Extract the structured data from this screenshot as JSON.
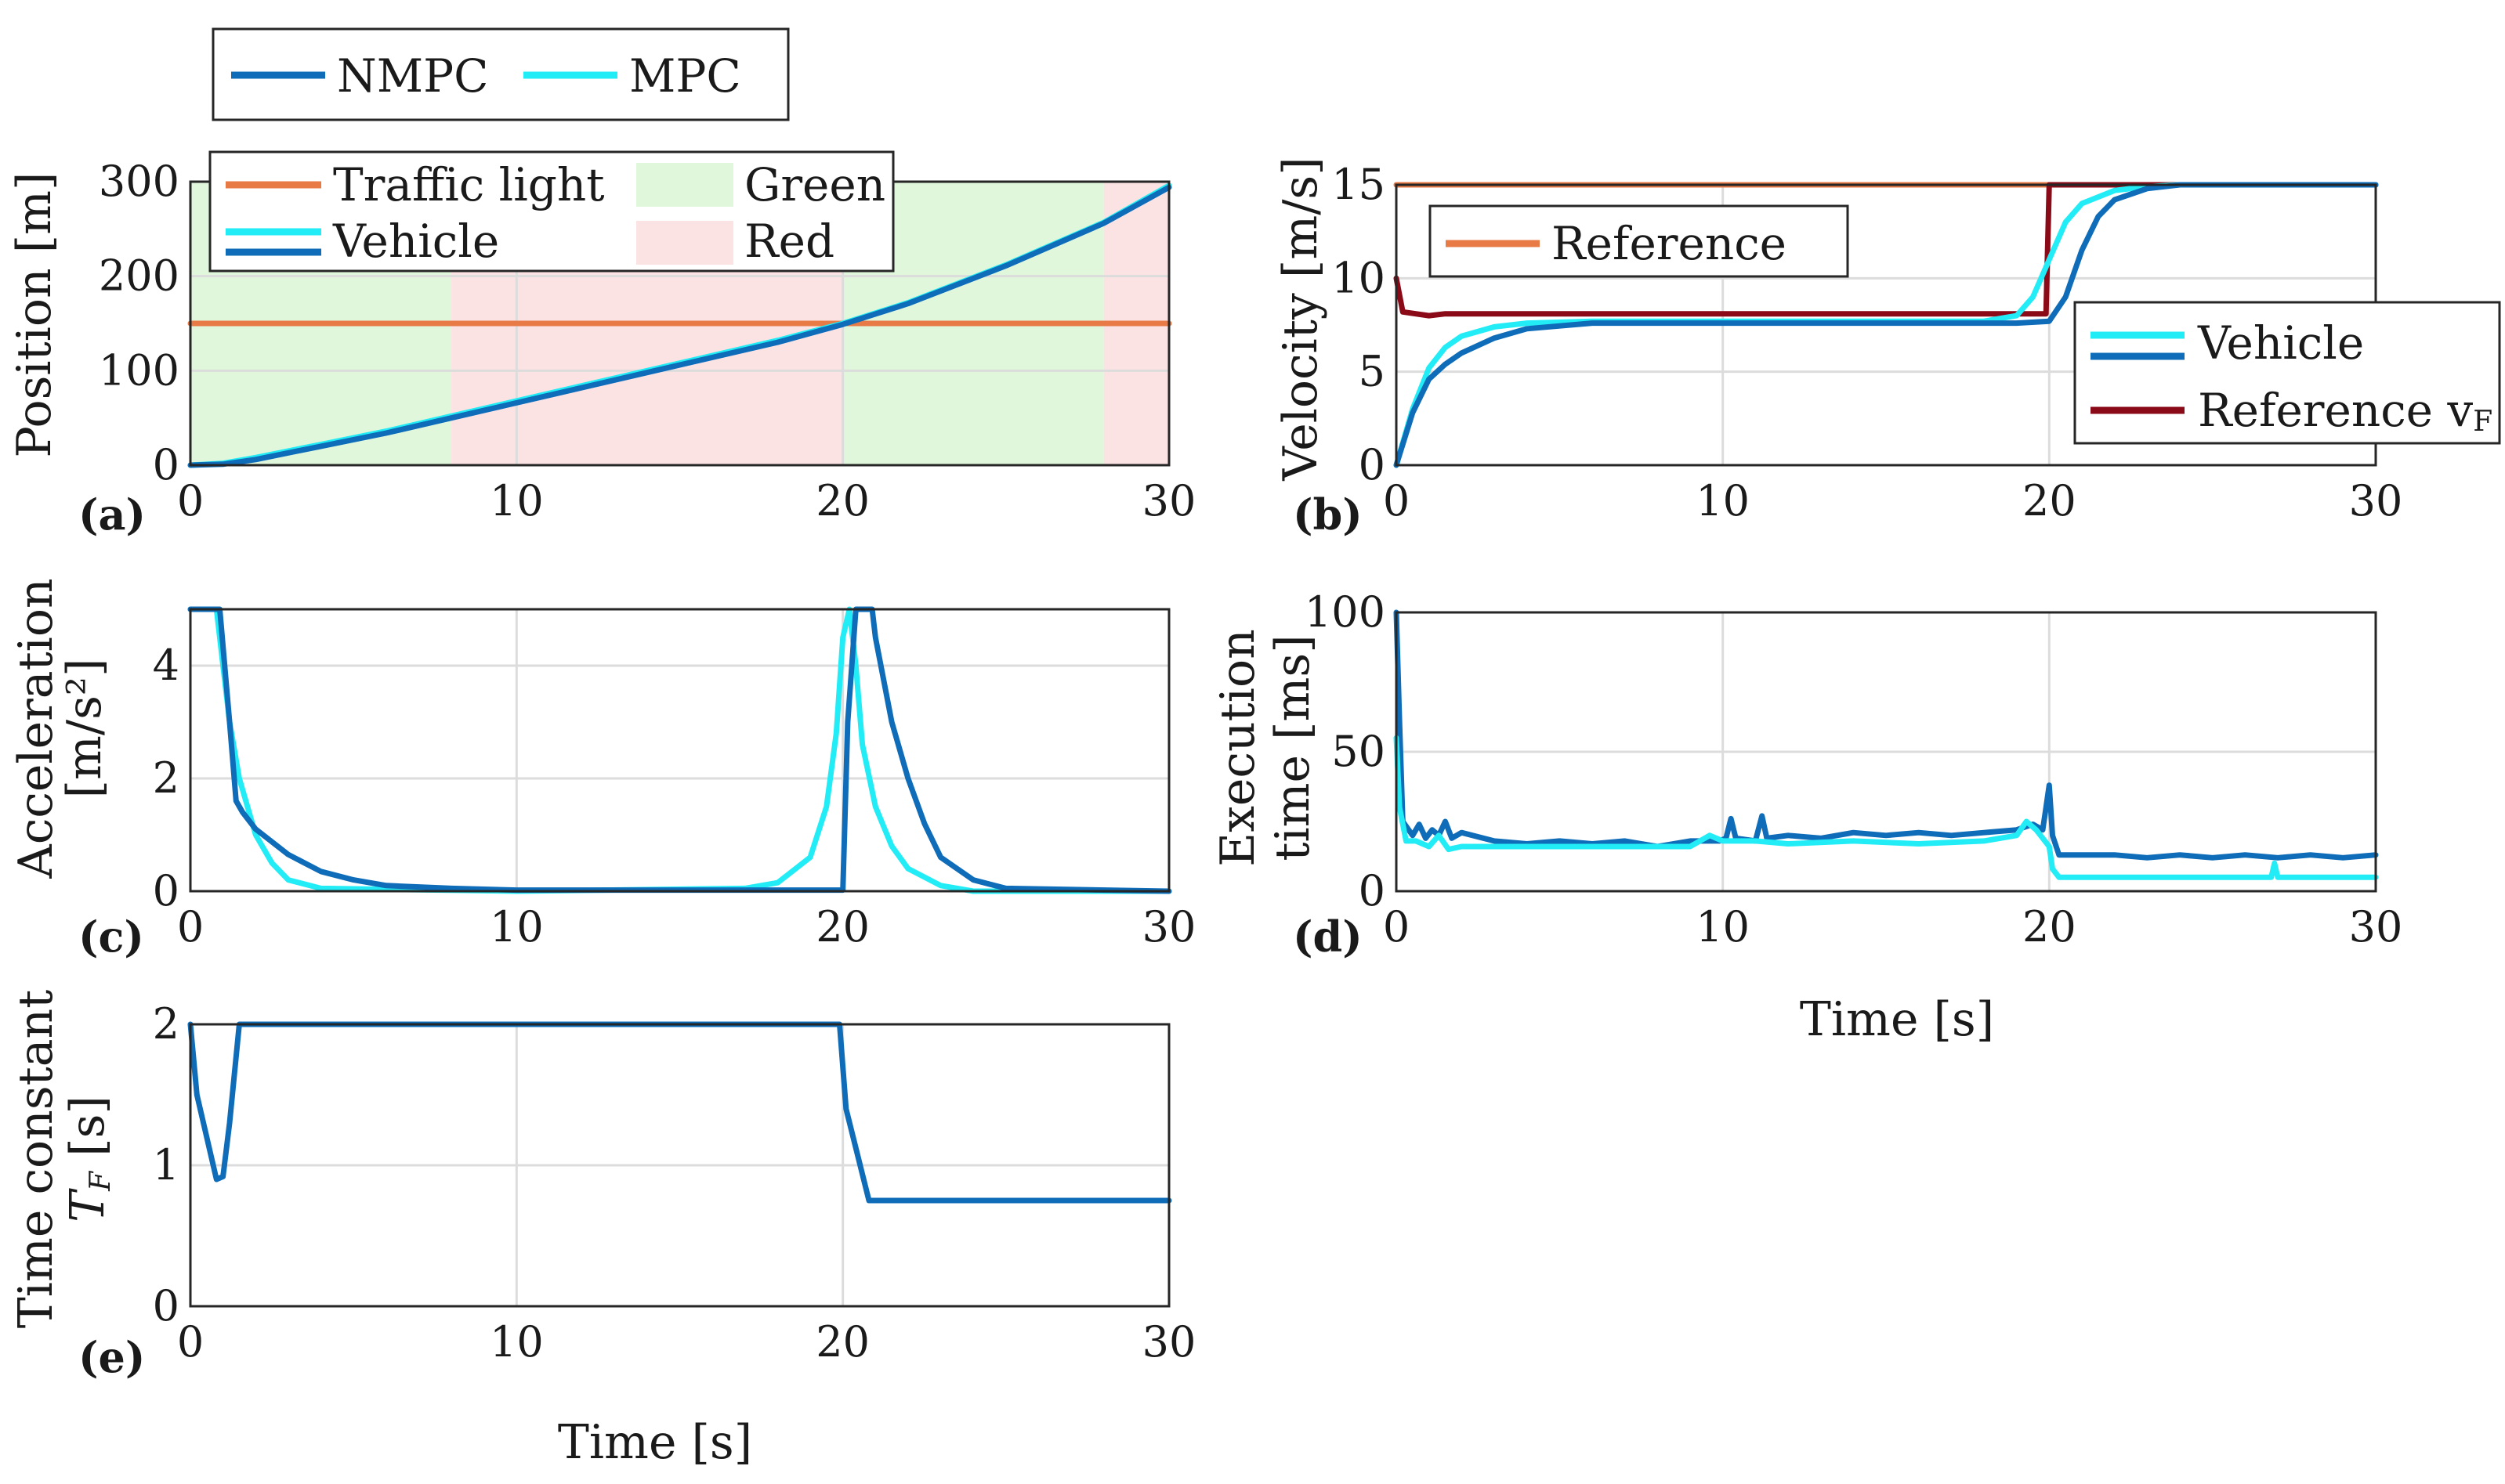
{
  "colors": {
    "nmpc": "#0f6cb8",
    "mpc": "#22ecf5",
    "traffic_light": "#e87a45",
    "reference_v": "#8b0a17",
    "green_phase": "#e0f7dc",
    "red_phase": "#fce3e3"
  },
  "top_legend": {
    "nmpc": "NMPC",
    "mpc": "MPC"
  },
  "chart_data": [
    {
      "id": "a",
      "type": "line",
      "panel_label": "(a)",
      "ylabel": "Position [m]",
      "xlabel": "",
      "xlim": [
        0,
        30
      ],
      "ylim": [
        0,
        300
      ],
      "xticks": [
        "0",
        "10",
        "20",
        "30"
      ],
      "yticks": [
        "0",
        "100",
        "200",
        "300"
      ],
      "grid": true,
      "legend": {
        "placement": "top-left",
        "entries": [
          "Traffic light",
          "Vehicle",
          "Green",
          "Red"
        ]
      },
      "shaded_phases": [
        {
          "label": "Green",
          "x": [
            0,
            8
          ]
        },
        {
          "label": "Red",
          "x": [
            8,
            20
          ]
        },
        {
          "label": "Green",
          "x": [
            20,
            28
          ]
        },
        {
          "label": "Red",
          "x": [
            28,
            30
          ]
        }
      ],
      "series": [
        {
          "name": "Traffic light",
          "points": [
            [
              0,
              150
            ],
            [
              30,
              150
            ]
          ]
        },
        {
          "name": "MPC",
          "points": [
            [
              0,
              0
            ],
            [
              1,
              2
            ],
            [
              2,
              8
            ],
            [
              4,
              22
            ],
            [
              6,
              36
            ],
            [
              8,
              52
            ],
            [
              10,
              68
            ],
            [
              14,
              100
            ],
            [
              18,
              132
            ],
            [
              20,
              150
            ],
            [
              22,
              172
            ],
            [
              25,
              212
            ],
            [
              28,
              257
            ],
            [
              30,
              296
            ]
          ]
        },
        {
          "name": "NMPC",
          "points": [
            [
              0,
              0
            ],
            [
              1,
              1
            ],
            [
              2,
              6
            ],
            [
              4,
              20
            ],
            [
              6,
              34
            ],
            [
              8,
              50
            ],
            [
              10,
              66
            ],
            [
              14,
              98
            ],
            [
              18,
              130
            ],
            [
              20,
              149
            ],
            [
              22,
              171
            ],
            [
              25,
              211
            ],
            [
              28,
              256
            ],
            [
              30,
              294
            ]
          ]
        }
      ]
    },
    {
      "id": "b",
      "type": "line",
      "panel_label": "(b)",
      "ylabel": "Velocity [m/s]",
      "xlabel": "",
      "xlim": [
        0,
        30
      ],
      "ylim": [
        0,
        15
      ],
      "xticks": [
        "0",
        "10",
        "20",
        "30"
      ],
      "yticks": [
        "0",
        "5",
        "10",
        "15"
      ],
      "grid": true,
      "legends": [
        {
          "placement": "top-left",
          "entries": [
            "Reference"
          ]
        },
        {
          "placement": "right",
          "entries": [
            "Vehicle",
            "Reference v",
            "F"
          ]
        }
      ],
      "series": [
        {
          "name": "Reference",
          "points": [
            [
              0,
              15
            ],
            [
              30,
              15
            ]
          ]
        },
        {
          "name": "Reference vF",
          "points": [
            [
              0,
              10
            ],
            [
              0.2,
              8.2
            ],
            [
              1,
              8
            ],
            [
              1.5,
              8.1
            ],
            [
              19.9,
              8.1
            ],
            [
              20,
              15
            ],
            [
              30,
              15
            ]
          ]
        },
        {
          "name": "MPC",
          "points": [
            [
              0,
              0
            ],
            [
              0.5,
              3
            ],
            [
              1,
              5.2
            ],
            [
              1.5,
              6.3
            ],
            [
              2,
              6.9
            ],
            [
              3,
              7.4
            ],
            [
              4,
              7.6
            ],
            [
              6,
              7.7
            ],
            [
              18,
              7.7
            ],
            [
              19,
              8
            ],
            [
              19.5,
              9
            ],
            [
              20,
              11
            ],
            [
              20.5,
              13
            ],
            [
              21,
              14
            ],
            [
              22,
              14.7
            ],
            [
              23,
              14.9
            ],
            [
              24,
              15
            ],
            [
              30,
              15
            ]
          ]
        },
        {
          "name": "NMPC",
          "points": [
            [
              0,
              0
            ],
            [
              0.5,
              2.8
            ],
            [
              1,
              4.6
            ],
            [
              1.5,
              5.4
            ],
            [
              2,
              6
            ],
            [
              3,
              6.8
            ],
            [
              4,
              7.3
            ],
            [
              6,
              7.6
            ],
            [
              19,
              7.6
            ],
            [
              20,
              7.7
            ],
            [
              20.5,
              9
            ],
            [
              21,
              11.5
            ],
            [
              21.5,
              13.3
            ],
            [
              22,
              14.2
            ],
            [
              23,
              14.8
            ],
            [
              24,
              15
            ],
            [
              30,
              15
            ]
          ]
        }
      ]
    },
    {
      "id": "c",
      "type": "line",
      "panel_label": "(c)",
      "ylabel": "Acceleration",
      "ylabel2": "[m/s²]",
      "xlabel": "",
      "xlim": [
        0,
        30
      ],
      "ylim": [
        0,
        5
      ],
      "xticks": [
        "0",
        "10",
        "20",
        "30"
      ],
      "yticks": [
        "0",
        "2",
        "4"
      ],
      "grid": true,
      "series": [
        {
          "name": "MPC",
          "points": [
            [
              0,
              5
            ],
            [
              0.8,
              5
            ],
            [
              1,
              4
            ],
            [
              1.2,
              3
            ],
            [
              1.5,
              2
            ],
            [
              2,
              1
            ],
            [
              2.5,
              0.5
            ],
            [
              3,
              0.2
            ],
            [
              4,
              0.05
            ],
            [
              10,
              0
            ],
            [
              17,
              0.05
            ],
            [
              18,
              0.15
            ],
            [
              19,
              0.6
            ],
            [
              19.5,
              1.5
            ],
            [
              19.8,
              2.8
            ],
            [
              20,
              4.5
            ],
            [
              20.2,
              5
            ],
            [
              20.4,
              4
            ],
            [
              20.6,
              2.6
            ],
            [
              21,
              1.5
            ],
            [
              21.5,
              0.8
            ],
            [
              22,
              0.4
            ],
            [
              23,
              0.1
            ],
            [
              24,
              0
            ],
            [
              30,
              0
            ]
          ]
        },
        {
          "name": "NMPC",
          "points": [
            [
              0,
              5
            ],
            [
              0.9,
              5
            ],
            [
              1.2,
              3
            ],
            [
              1.4,
              1.6
            ],
            [
              1.6,
              1.4
            ],
            [
              2,
              1.1
            ],
            [
              3,
              0.65
            ],
            [
              4,
              0.35
            ],
            [
              5,
              0.2
            ],
            [
              6,
              0.1
            ],
            [
              8,
              0.05
            ],
            [
              10,
              0.02
            ],
            [
              20,
              0.02
            ],
            [
              20.15,
              3
            ],
            [
              20.4,
              5
            ],
            [
              20.9,
              5
            ],
            [
              21,
              4.5
            ],
            [
              21.5,
              3
            ],
            [
              22,
              2
            ],
            [
              22.5,
              1.2
            ],
            [
              23,
              0.6
            ],
            [
              24,
              0.2
            ],
            [
              25,
              0.05
            ],
            [
              30,
              0
            ]
          ]
        }
      ]
    },
    {
      "id": "d",
      "type": "line",
      "panel_label": "(d)",
      "ylabel": "Execution",
      "ylabel2": "time [ms]",
      "xlabel": "Time [s]",
      "xlim": [
        0,
        30
      ],
      "ylim": [
        0,
        100
      ],
      "xticks": [
        "0",
        "10",
        "20",
        "30"
      ],
      "yticks": [
        "0",
        "50",
        "100"
      ],
      "grid": true,
      "series": [
        {
          "name": "NMPC",
          "points": [
            [
              0,
              100
            ],
            [
              0.1,
              60
            ],
            [
              0.2,
              25
            ],
            [
              0.5,
              20
            ],
            [
              0.7,
              24
            ],
            [
              0.9,
              19
            ],
            [
              1.1,
              22
            ],
            [
              1.3,
              20
            ],
            [
              1.5,
              25
            ],
            [
              1.7,
              19
            ],
            [
              2,
              21
            ],
            [
              3,
              18
            ],
            [
              4,
              17
            ],
            [
              5,
              18
            ],
            [
              6,
              17
            ],
            [
              7,
              18
            ],
            [
              8,
              16
            ],
            [
              9,
              18
            ],
            [
              9.9,
              18
            ],
            [
              10.1,
              19
            ],
            [
              10.25,
              26
            ],
            [
              10.4,
              19
            ],
            [
              11,
              18
            ],
            [
              11.2,
              27
            ],
            [
              11.35,
              19
            ],
            [
              12,
              20
            ],
            [
              13,
              19
            ],
            [
              14,
              21
            ],
            [
              15,
              20
            ],
            [
              16,
              21
            ],
            [
              17,
              20
            ],
            [
              18,
              21
            ],
            [
              19,
              22
            ],
            [
              19.5,
              24
            ],
            [
              19.8,
              22
            ],
            [
              19.9,
              30
            ],
            [
              20,
              38
            ],
            [
              20.1,
              20
            ],
            [
              20.3,
              13
            ],
            [
              21,
              13
            ],
            [
              22,
              13
            ],
            [
              23,
              12
            ],
            [
              24,
              13
            ],
            [
              25,
              12
            ],
            [
              26,
              13
            ],
            [
              27,
              12
            ],
            [
              28,
              13
            ],
            [
              29,
              12
            ],
            [
              30,
              13
            ]
          ]
        },
        {
          "name": "MPC",
          "points": [
            [
              0,
              55
            ],
            [
              0.1,
              30
            ],
            [
              0.3,
              18
            ],
            [
              0.6,
              18
            ],
            [
              1,
              16
            ],
            [
              1.3,
              20
            ],
            [
              1.6,
              15
            ],
            [
              2,
              16
            ],
            [
              3,
              16
            ],
            [
              5,
              16
            ],
            [
              7,
              16
            ],
            [
              9,
              16
            ],
            [
              9.6,
              20
            ],
            [
              10,
              18
            ],
            [
              11,
              18
            ],
            [
              12,
              17
            ],
            [
              14,
              18
            ],
            [
              16,
              17
            ],
            [
              18,
              18
            ],
            [
              19,
              20
            ],
            [
              19.3,
              25
            ],
            [
              19.6,
              22
            ],
            [
              20,
              16
            ],
            [
              20.1,
              8
            ],
            [
              20.3,
              5
            ],
            [
              21,
              5
            ],
            [
              22,
              5
            ],
            [
              23,
              5
            ],
            [
              24,
              5
            ],
            [
              25,
              5
            ],
            [
              26,
              5
            ],
            [
              26.8,
              5
            ],
            [
              26.9,
              10
            ],
            [
              27,
              5
            ],
            [
              28,
              5
            ],
            [
              29,
              5
            ],
            [
              30,
              5
            ]
          ]
        }
      ]
    },
    {
      "id": "e",
      "type": "line",
      "panel_label": "(e)",
      "ylabel": "Time constant",
      "ylabel2": "T",
      "ylabel2_sub": "F",
      "ylabel2_rest": " [s]",
      "xlabel": "Time [s]",
      "xlim": [
        0,
        30
      ],
      "ylim": [
        0,
        2
      ],
      "xticks": [
        "0",
        "10",
        "20",
        "30"
      ],
      "yticks": [
        "0",
        "1",
        "2"
      ],
      "grid": true,
      "series": [
        {
          "name": "NMPC",
          "points": [
            [
              0,
              2
            ],
            [
              0.2,
              1.5
            ],
            [
              0.8,
              0.9
            ],
            [
              1,
              0.92
            ],
            [
              1.2,
              1.3
            ],
            [
              1.5,
              2
            ],
            [
              19.9,
              2
            ],
            [
              20.1,
              1.4
            ],
            [
              20.8,
              0.75
            ],
            [
              30,
              0.75
            ]
          ]
        }
      ]
    }
  ]
}
